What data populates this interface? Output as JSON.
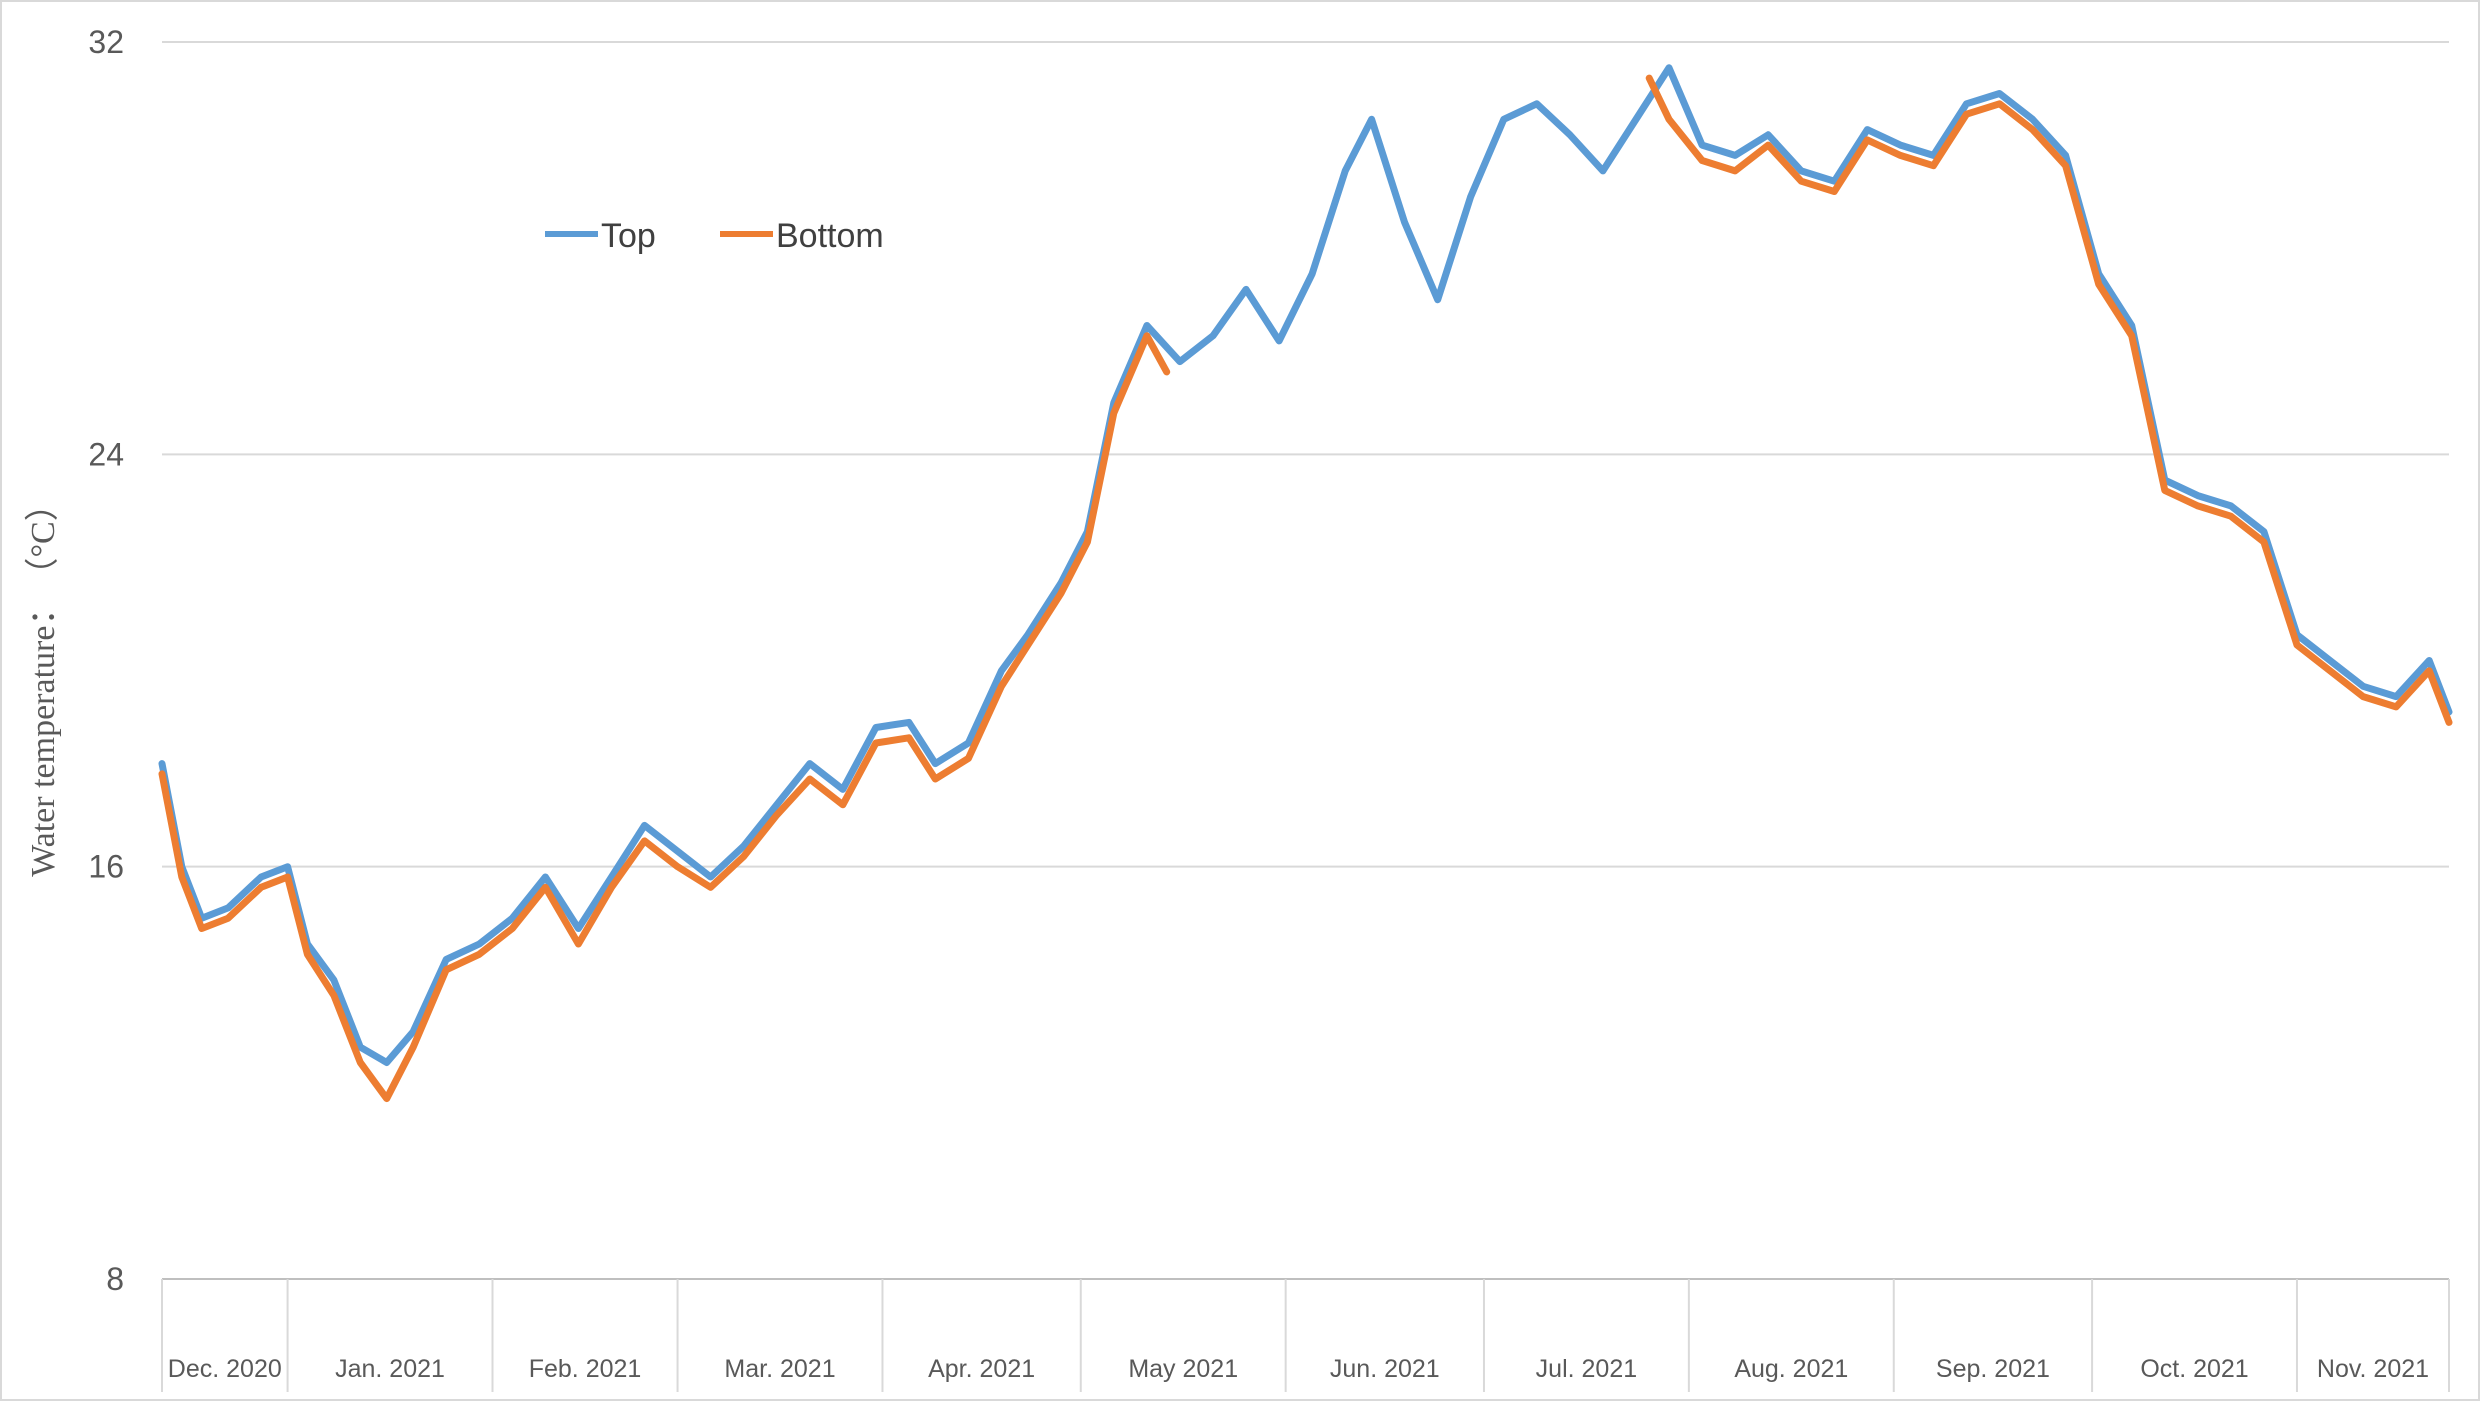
{
  "chart_data": {
    "type": "line",
    "title": "",
    "xlabel": "",
    "ylabel": "Water temperature：　（°C）",
    "ylim": [
      8,
      32
    ],
    "yticks": [
      "8",
      "16",
      "24",
      "32"
    ],
    "ytick_values": [
      8,
      16,
      24,
      32
    ],
    "grid": "horizontal",
    "legend_position": "upper-left",
    "months": [
      {
        "label": "Dec. 2020",
        "days": 19
      },
      {
        "label": "Jan. 2021",
        "days": 31
      },
      {
        "label": "Feb. 2021",
        "days": 28
      },
      {
        "label": "Mar. 2021",
        "days": 31
      },
      {
        "label": "Apr. 2021",
        "days": 30
      },
      {
        "label": "May 2021",
        "days": 31
      },
      {
        "label": "Jun. 2021",
        "days": 30
      },
      {
        "label": "Jul. 2021",
        "days": 31
      },
      {
        "label": "Aug. 2021",
        "days": 31
      },
      {
        "label": "Sep. 2021",
        "days": 30
      },
      {
        "label": "Oct. 2021",
        "days": 31
      },
      {
        "label": "Nov. 2021",
        "days": 23
      }
    ],
    "x_start": "2020-12-12",
    "x_end": "2021-11-23",
    "series": [
      {
        "name": "Top",
        "color": "#5b9bd5",
        "x": [
          "2020-12-12",
          "2020-12-15",
          "2020-12-18",
          "2020-12-22",
          "2020-12-27",
          "2020-12-31",
          "2021-01-03",
          "2021-01-07",
          "2021-01-11",
          "2021-01-15",
          "2021-01-19",
          "2021-01-24",
          "2021-01-29",
          "2021-02-03",
          "2021-02-08",
          "2021-02-13",
          "2021-02-18",
          "2021-02-23",
          "2021-02-28",
          "2021-03-05",
          "2021-03-10",
          "2021-03-15",
          "2021-03-20",
          "2021-03-25",
          "2021-03-30",
          "2021-04-04",
          "2021-04-08",
          "2021-04-13",
          "2021-04-18",
          "2021-04-22",
          "2021-04-27",
          "2021-05-01",
          "2021-05-05",
          "2021-05-10",
          "2021-05-15",
          "2021-05-20",
          "2021-05-25",
          "2021-05-30",
          "2021-06-04",
          "2021-06-09",
          "2021-06-13",
          "2021-06-18",
          "2021-06-23",
          "2021-06-28",
          "2021-07-03",
          "2021-07-08",
          "2021-07-13",
          "2021-07-18",
          "2021-07-23",
          "2021-07-28",
          "2021-08-02",
          "2021-08-07",
          "2021-08-12",
          "2021-08-17",
          "2021-08-22",
          "2021-08-27",
          "2021-09-01",
          "2021-09-06",
          "2021-09-11",
          "2021-09-16",
          "2021-09-21",
          "2021-09-26",
          "2021-10-01",
          "2021-10-06",
          "2021-10-11",
          "2021-10-16",
          "2021-10-21",
          "2021-10-26",
          "2021-10-31",
          "2021-11-05",
          "2021-11-10",
          "2021-11-15",
          "2021-11-20",
          "2021-11-23"
        ],
        "values": [
          18.0,
          16.0,
          15.0,
          15.2,
          15.8,
          16.0,
          14.5,
          13.8,
          12.5,
          12.2,
          12.8,
          14.2,
          14.5,
          15.0,
          15.8,
          14.8,
          15.8,
          16.8,
          16.3,
          15.8,
          16.4,
          17.2,
          18.0,
          17.5,
          18.7,
          18.8,
          18.0,
          18.4,
          19.8,
          20.5,
          21.5,
          22.5,
          25.0,
          26.5,
          25.8,
          26.3,
          27.2,
          26.2,
          27.5,
          29.5,
          30.5,
          28.5,
          27.0,
          29.0,
          30.5,
          30.8,
          30.2,
          29.5,
          30.5,
          31.5,
          30.0,
          29.8,
          30.2,
          29.5,
          29.3,
          30.3,
          30.0,
          29.8,
          30.8,
          31.0,
          30.5,
          29.8,
          27.5,
          26.5,
          23.5,
          23.2,
          23.0,
          22.5,
          20.5,
          20.0,
          19.5,
          19.3,
          20.0,
          19.0
        ]
      },
      {
        "name": "Bottom",
        "color": "#ed7d31",
        "x": [
          "2020-12-12",
          "2020-12-15",
          "2020-12-18",
          "2020-12-22",
          "2020-12-27",
          "2020-12-31",
          "2021-01-03",
          "2021-01-07",
          "2021-01-11",
          "2021-01-15",
          "2021-01-19",
          "2021-01-24",
          "2021-01-29",
          "2021-02-03",
          "2021-02-08",
          "2021-02-13",
          "2021-02-18",
          "2021-02-23",
          "2021-02-28",
          "2021-03-05",
          "2021-03-10",
          "2021-03-15",
          "2021-03-20",
          "2021-03-25",
          "2021-03-30",
          "2021-04-04",
          "2021-04-08",
          "2021-04-13",
          "2021-04-18",
          "2021-04-22",
          "2021-04-27",
          "2021-05-01",
          "2021-05-05",
          "2021-05-10",
          "2021-05-13",
          "2021-07-25",
          "2021-07-28",
          "2021-08-02",
          "2021-08-07",
          "2021-08-12",
          "2021-08-17",
          "2021-08-22",
          "2021-08-27",
          "2021-09-01",
          "2021-09-06",
          "2021-09-11",
          "2021-09-16",
          "2021-09-21",
          "2021-09-26",
          "2021-10-01",
          "2021-10-06",
          "2021-10-11",
          "2021-10-16",
          "2021-10-21",
          "2021-10-26",
          "2021-10-31",
          "2021-11-05",
          "2021-11-10",
          "2021-11-15",
          "2021-11-20",
          "2021-11-23"
        ],
        "values": [
          17.8,
          15.8,
          14.8,
          15.0,
          15.6,
          15.8,
          14.3,
          13.5,
          12.2,
          11.5,
          12.5,
          14.0,
          14.3,
          14.8,
          15.6,
          14.5,
          15.6,
          16.5,
          16.0,
          15.6,
          16.2,
          17.0,
          17.7,
          17.2,
          18.4,
          18.5,
          17.7,
          18.1,
          19.5,
          20.3,
          21.3,
          22.3,
          24.8,
          26.3,
          25.6,
          31.3,
          30.5,
          29.7,
          29.5,
          30.0,
          29.3,
          29.1,
          30.1,
          29.8,
          29.6,
          30.6,
          30.8,
          30.3,
          29.6,
          27.3,
          26.3,
          23.3,
          23.0,
          22.8,
          22.3,
          20.3,
          19.8,
          19.3,
          19.1,
          19.8,
          18.8
        ]
      }
    ]
  }
}
